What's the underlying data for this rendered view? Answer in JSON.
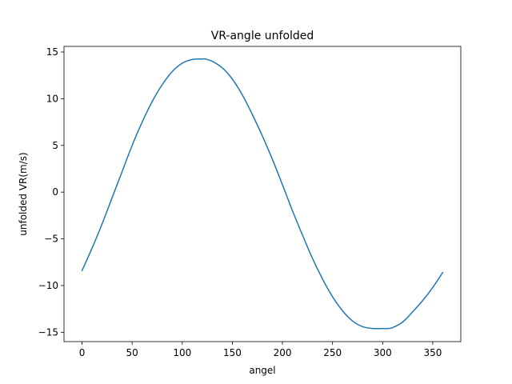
{
  "chart_data": {
    "type": "line",
    "title": "VR-angle unfolded",
    "xlabel": "angel",
    "ylabel": "unfolded VR(m/s)",
    "xlim": [
      -18,
      378
    ],
    "ylim": [
      -16.0,
      15.6
    ],
    "xticks": [
      0,
      50,
      100,
      150,
      200,
      250,
      300,
      350
    ],
    "yticks": [
      -15,
      -10,
      -5,
      0,
      5,
      10,
      15
    ],
    "ytick_labels": [
      "−15",
      "−10",
      "−5",
      "0",
      "5",
      "10",
      "15"
    ],
    "grid": false,
    "series": [
      {
        "color": "#1f77b4",
        "x": [
          0,
          10,
          20,
          30,
          40,
          50,
          60,
          70,
          80,
          90,
          100,
          110,
          120,
          123,
          130,
          140,
          150,
          160,
          170,
          180,
          190,
          200,
          210,
          220,
          230,
          240,
          250,
          260,
          270,
          280,
          290,
          300,
          305,
          310,
          320,
          330,
          340,
          350,
          360
        ],
        "y": [
          -8.4,
          -6.0,
          -3.4,
          -0.6,
          2.2,
          5.0,
          7.5,
          9.7,
          11.5,
          12.9,
          13.8,
          14.2,
          14.25,
          14.25,
          14.0,
          13.3,
          12.1,
          10.4,
          8.3,
          6.0,
          3.5,
          0.8,
          -2.0,
          -4.6,
          -7.1,
          -9.3,
          -11.2,
          -12.7,
          -13.8,
          -14.4,
          -14.6,
          -14.6,
          -14.6,
          -14.5,
          -13.9,
          -12.8,
          -11.6,
          -10.2,
          -8.6
        ]
      }
    ]
  }
}
